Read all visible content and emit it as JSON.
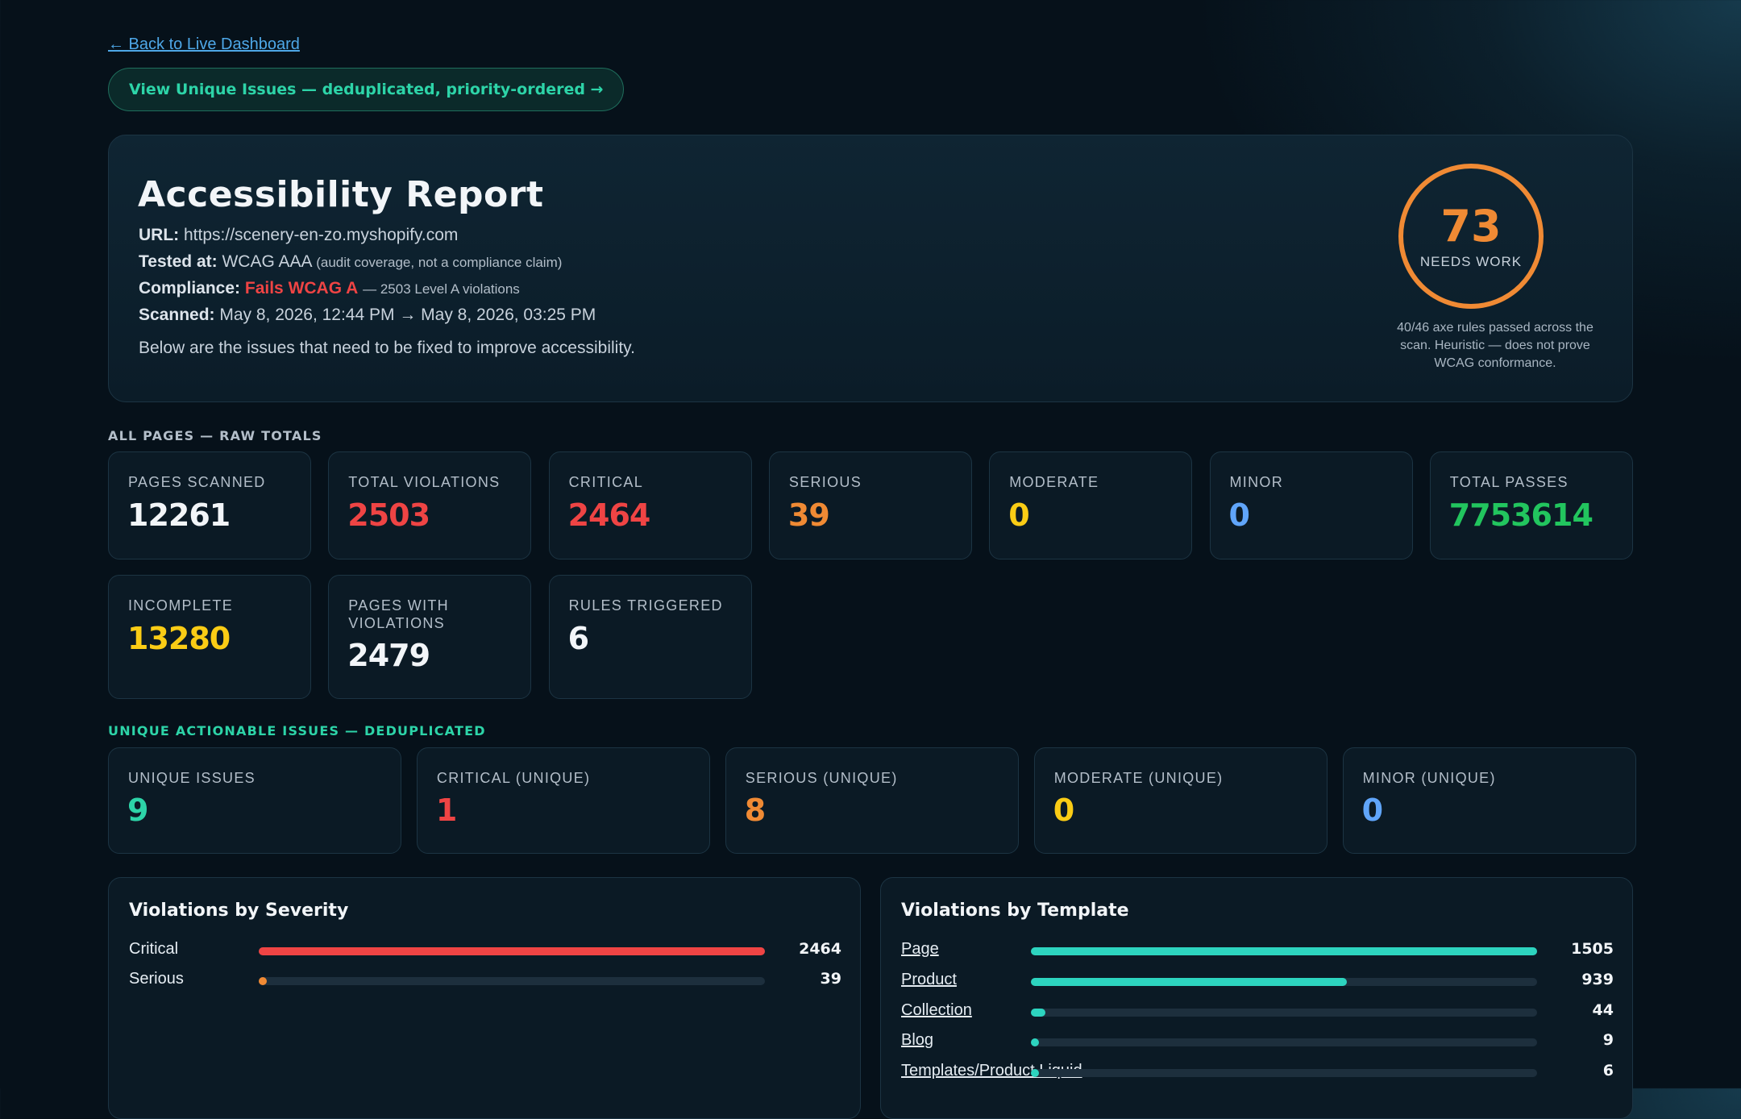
{
  "nav": {
    "back_label": "← Back to Live Dashboard",
    "unique_button_label": "View Unique Issues — deduplicated, priority-ordered →"
  },
  "report": {
    "title": "Accessibility Report",
    "url_label": "URL:",
    "url_value": "https://scenery-en-zo.myshopify.com",
    "tested_label": "Tested at:",
    "tested_value": "WCAG AAA",
    "tested_note": "(audit coverage, not a compliance claim)",
    "compliance_label": "Compliance:",
    "compliance_value": "Fails WCAG A",
    "compliance_note": "— 2503 Level A violations",
    "scanned_label": "Scanned:",
    "scanned_value": "May 8, 2026, 12:44 PM → May 8, 2026, 03:25 PM",
    "description": "Below are the issues that need to be fixed to improve accessibility.",
    "score": "73",
    "score_label": "NEEDS WORK",
    "score_note": "40/46 axe rules passed across the scan. Heuristic — does not prove WCAG conformance."
  },
  "raw_totals": {
    "section_label": "ALL PAGES — RAW TOTALS",
    "stats": [
      {
        "label": "Pages Scanned",
        "value": "12261",
        "color": "#f2f5f8"
      },
      {
        "label": "Total Violations",
        "value": "2503",
        "color": "#ef4444"
      },
      {
        "label": "Critical",
        "value": "2464",
        "color": "#ef4444"
      },
      {
        "label": "Serious",
        "value": "39",
        "color": "#f08a34"
      },
      {
        "label": "Moderate",
        "value": "0",
        "color": "#facc15"
      },
      {
        "label": "Minor",
        "value": "0",
        "color": "#60a5fa"
      },
      {
        "label": "Total Passes",
        "value": "7753614",
        "color": "#22c55e"
      },
      {
        "label": "Incomplete",
        "value": "13280",
        "color": "#facc15"
      },
      {
        "label": "Pages with Violations",
        "value": "2479",
        "color": "#f2f5f8"
      },
      {
        "label": "Rules Triggered",
        "value": "6",
        "color": "#f2f5f8"
      }
    ]
  },
  "unique": {
    "section_label": "UNIQUE ACTIONABLE ISSUES — DEDUPLICATED",
    "stats": [
      {
        "label": "Unique Issues",
        "value": "9",
        "color": "#2dd4a8"
      },
      {
        "label": "Critical (Unique)",
        "value": "1",
        "color": "#ef4444"
      },
      {
        "label": "Serious (Unique)",
        "value": "8",
        "color": "#f08a34"
      },
      {
        "label": "Moderate (Unique)",
        "value": "0",
        "color": "#facc15"
      },
      {
        "label": "Minor (Unique)",
        "value": "0",
        "color": "#60a5fa"
      }
    ]
  },
  "severity_panel": {
    "title": "Violations by Severity",
    "max": 2464,
    "rows": [
      {
        "label": "Critical",
        "value": 2464,
        "color": "#ef4444"
      },
      {
        "label": "Serious",
        "value": 39,
        "color": "#f08a34"
      }
    ]
  },
  "template_panel": {
    "title": "Violations by Template",
    "max": 1505,
    "rows": [
      {
        "label": "Page",
        "value": 1505,
        "color": "#2dd4bf"
      },
      {
        "label": "Product",
        "value": 939,
        "color": "#2dd4bf"
      },
      {
        "label": "Collection",
        "value": 44,
        "color": "#2dd4bf"
      },
      {
        "label": "Blog",
        "value": 9,
        "color": "#2dd4bf"
      },
      {
        "label": "Templates/Product.Liquid",
        "value": 6,
        "color": "#2dd4bf"
      }
    ]
  }
}
